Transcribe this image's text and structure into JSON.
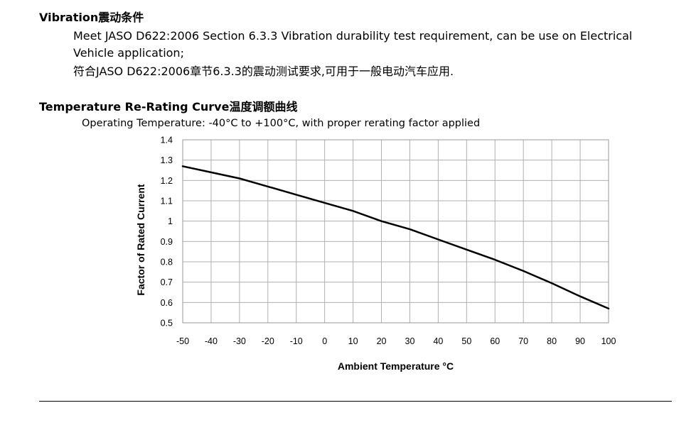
{
  "vibration": {
    "heading": "Vibration震动条件",
    "line1": "Meet JASO D622:2006 Section 6.3.3 Vibration durability test requirement, can be use on Electrical",
    "line2": "Vehicle application;",
    "line3": "符合JASO D622:2006章节6.3.3的震动测试要求,可用于一般电动汽车应用."
  },
  "derating": {
    "heading": "Temperature Re-Rating Curve温度调额曲线",
    "subtitle": "Operating Temperature:  -40°C to +100°C, with proper rerating factor applied"
  },
  "chart_data": {
    "type": "line",
    "title": "",
    "xlabel": "Ambient Temperature °C",
    "ylabel": "Factor of Rated Current",
    "xlim": [
      -50,
      100
    ],
    "ylim": [
      0.5,
      1.4
    ],
    "x_ticks": [
      -50,
      -40,
      -30,
      -20,
      -10,
      0,
      10,
      20,
      30,
      40,
      50,
      60,
      70,
      80,
      90,
      100
    ],
    "y_ticks": [
      0.5,
      0.6,
      0.7,
      0.8,
      0.9,
      1,
      1.1,
      1.2,
      1.3,
      1.4
    ],
    "y_tick_labels": [
      "0.5",
      "0.6",
      "0.7",
      "0.8",
      "0.9",
      "1",
      "1.1",
      "1.2",
      "1.3",
      "1.4"
    ],
    "grid": true,
    "grid_color": "#b0b0b0",
    "line_color": "#000000",
    "series": [
      {
        "x": [
          -50,
          -40,
          -30,
          -20,
          -10,
          0,
          10,
          20,
          30,
          40,
          50,
          60,
          70,
          80,
          90,
          100
        ],
        "y": [
          1.27,
          1.24,
          1.21,
          1.17,
          1.13,
          1.09,
          1.05,
          1.0,
          0.96,
          0.91,
          0.86,
          0.81,
          0.755,
          0.695,
          0.63,
          0.57
        ]
      }
    ]
  }
}
